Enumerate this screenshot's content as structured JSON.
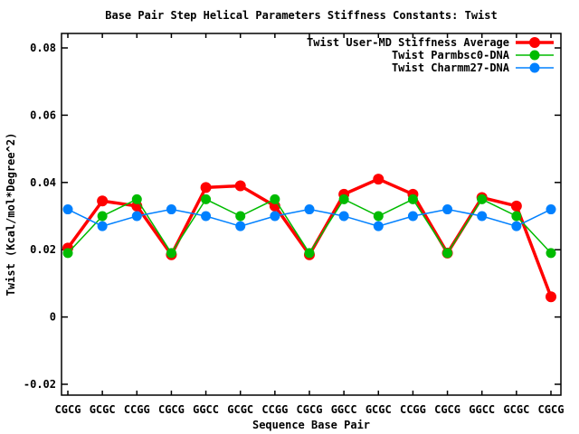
{
  "chart_data": {
    "type": "line",
    "title": "Base Pair Step Helical Parameters Stiffness Constants: Twist",
    "xlabel": "Sequence Base Pair",
    "ylabel": "Twist (Kcal/mol*Degree^2)",
    "categories": [
      "CGCG",
      "GCGC",
      "CCGG",
      "CGCG",
      "GGCC",
      "GCGC",
      "CCGG",
      "CGCG",
      "GGCC",
      "GCGC",
      "CCGG",
      "CGCG",
      "GGCC",
      "GCGC",
      "CGCG"
    ],
    "series": [
      {
        "name": "Twist User-MD Stiffness Average",
        "color": "#ff0000",
        "line_width": 3.5,
        "marker": "filled-circle",
        "marker_radius": 6,
        "values": [
          0.0205,
          0.0345,
          0.033,
          0.0185,
          0.0385,
          0.039,
          0.033,
          0.0185,
          0.0365,
          0.041,
          0.0365,
          0.019,
          0.0355,
          0.033,
          0.006
        ]
      },
      {
        "name": "Twist Parmbsc0-DNA",
        "color": "#00bb00",
        "line_width": 1.5,
        "marker": "filled-circle",
        "marker_radius": 5.5,
        "values": [
          0.019,
          0.03,
          0.035,
          0.019,
          0.035,
          0.03,
          0.035,
          0.019,
          0.035,
          0.03,
          0.035,
          0.019,
          0.035,
          0.03,
          0.019
        ]
      },
      {
        "name": "Twist Charmm27-DNA",
        "color": "#0080ff",
        "line_width": 1.5,
        "marker": "filled-circle",
        "marker_radius": 5.5,
        "values": [
          0.032,
          0.027,
          0.03,
          0.032,
          0.03,
          0.027,
          0.03,
          0.032,
          0.03,
          0.027,
          0.03,
          0.032,
          0.03,
          0.027,
          0.032
        ]
      }
    ],
    "yticks": [
      -0.02,
      0,
      0.02,
      0.04,
      0.06,
      0.08
    ],
    "ytick_labels": [
      "-0.02",
      "0",
      "0.02",
      "0.04",
      "0.06",
      "0.08"
    ],
    "ylim": [
      -0.0232,
      0.0843
    ],
    "grid": false,
    "legend_position": "top-right-inside",
    "axis_color": "#000000",
    "background_color": "#ffffff"
  }
}
